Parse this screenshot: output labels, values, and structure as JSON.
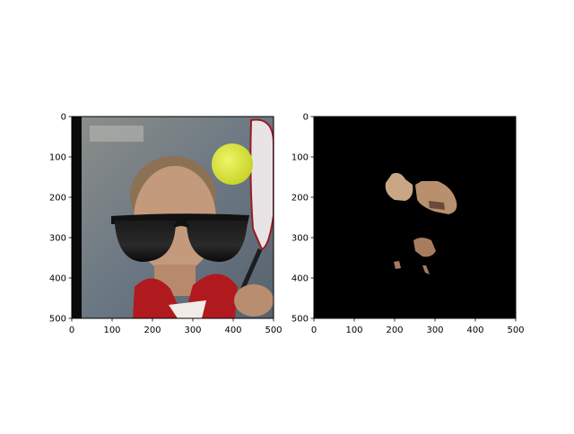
{
  "chart_data": [
    {
      "type": "image",
      "subject": "photo of a person with a tennis ball, overlaid with black sunglasses",
      "xlim": [
        0,
        500
      ],
      "ylim": [
        500,
        0
      ],
      "xticks": [
        "0",
        "100",
        "200",
        "300",
        "400",
        "500"
      ],
      "yticks": [
        "0",
        "100",
        "200",
        "300",
        "400",
        "500"
      ],
      "colors": {
        "background": "#6f7b86",
        "skin": "#c49a7c",
        "ball": "#d8e43a",
        "shirt": "#b01a1e",
        "glasses": "#0d0d0d"
      }
    },
    {
      "type": "image",
      "subject": "segmentation mask showing skin regions on black background",
      "xlim": [
        0,
        500
      ],
      "ylim": [
        500,
        0
      ],
      "xticks": [
        "0",
        "100",
        "200",
        "300",
        "400",
        "500"
      ],
      "yticks": [
        "0",
        "100",
        "200",
        "300",
        "400",
        "500"
      ],
      "colors": {
        "background": "#000000",
        "skin": "#c9a784"
      }
    }
  ]
}
